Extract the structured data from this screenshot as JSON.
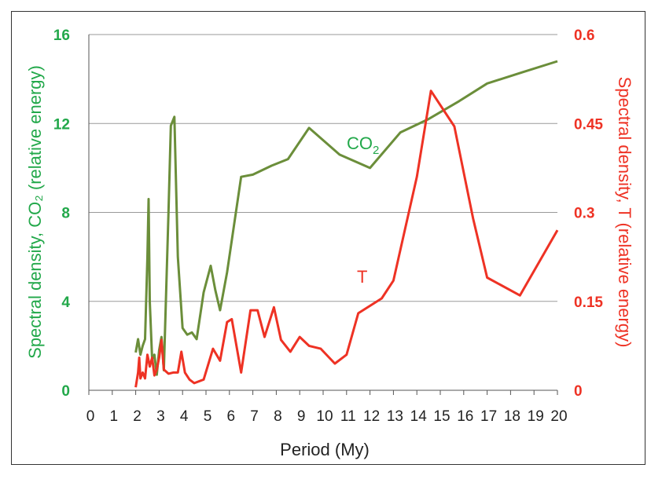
{
  "chart_data": {
    "type": "line",
    "xlabel": "Period (My)",
    "ylabel_left": "Spectral density, CO₂ (relative energy)",
    "ylabel_right": "Spectral density, T (relative energy)",
    "xlim": [
      0,
      20
    ],
    "xticks": [
      "0",
      "1",
      "2",
      "3",
      "4",
      "5",
      "6",
      "7",
      "8",
      "9",
      "10",
      "11",
      "12",
      "13",
      "14",
      "15",
      "16",
      "17",
      "18",
      "19",
      "20"
    ],
    "ylim_left": [
      0,
      16
    ],
    "yticks_left": [
      "0",
      "4",
      "8",
      "12",
      "16"
    ],
    "ylim_right": [
      0,
      0.6
    ],
    "yticks_right": [
      "0",
      "0.15",
      "0.3",
      "0.45",
      "0.6"
    ],
    "grid": "horizontal",
    "colors": {
      "co2": "#6b8e3a",
      "t": "#ee3224",
      "left_axis": "#22a84a",
      "right_axis": "#ee3224",
      "grid": "#9a9a9a"
    },
    "series": [
      {
        "name": "CO",
        "name_sub": "2",
        "axis": "left",
        "points": [
          [
            2.0,
            1.7
          ],
          [
            2.1,
            2.3
          ],
          [
            2.2,
            1.6
          ],
          [
            2.3,
            2.0
          ],
          [
            2.4,
            2.3
          ],
          [
            2.5,
            6.0
          ],
          [
            2.55,
            8.6
          ],
          [
            2.6,
            4.0
          ],
          [
            2.7,
            1.4
          ],
          [
            2.8,
            1.6
          ],
          [
            2.9,
            0.7
          ],
          [
            3.0,
            1.8
          ],
          [
            3.1,
            2.4
          ],
          [
            3.2,
            0.9
          ],
          [
            3.4,
            8.0
          ],
          [
            3.5,
            11.9
          ],
          [
            3.65,
            12.3
          ],
          [
            3.8,
            6.0
          ],
          [
            4.0,
            2.8
          ],
          [
            4.2,
            2.5
          ],
          [
            4.4,
            2.6
          ],
          [
            4.6,
            2.3
          ],
          [
            4.9,
            4.4
          ],
          [
            5.2,
            5.6
          ],
          [
            5.4,
            4.5
          ],
          [
            5.6,
            3.6
          ],
          [
            5.9,
            5.3
          ],
          [
            6.5,
            9.6
          ],
          [
            7.0,
            9.7
          ],
          [
            7.8,
            10.1
          ],
          [
            8.5,
            10.4
          ],
          [
            9.4,
            11.8
          ],
          [
            10.7,
            10.6
          ],
          [
            12.0,
            10.0
          ],
          [
            13.3,
            11.6
          ],
          [
            14.5,
            12.2
          ],
          [
            15.8,
            13.0
          ],
          [
            17.0,
            13.8
          ],
          [
            18.5,
            14.3
          ],
          [
            20.0,
            14.8
          ]
        ]
      },
      {
        "name": "T",
        "axis": "right",
        "points": [
          [
            2.0,
            0.005
          ],
          [
            2.1,
            0.03
          ],
          [
            2.15,
            0.055
          ],
          [
            2.2,
            0.02
          ],
          [
            2.3,
            0.03
          ],
          [
            2.4,
            0.02
          ],
          [
            2.5,
            0.06
          ],
          [
            2.6,
            0.04
          ],
          [
            2.7,
            0.055
          ],
          [
            2.8,
            0.025
          ],
          [
            2.9,
            0.035
          ],
          [
            3.0,
            0.055
          ],
          [
            3.1,
            0.085
          ],
          [
            3.2,
            0.035
          ],
          [
            3.4,
            0.028
          ],
          [
            3.6,
            0.03
          ],
          [
            3.8,
            0.03
          ],
          [
            3.95,
            0.065
          ],
          [
            4.1,
            0.03
          ],
          [
            4.3,
            0.018
          ],
          [
            4.5,
            0.012
          ],
          [
            4.9,
            0.018
          ],
          [
            5.3,
            0.07
          ],
          [
            5.6,
            0.05
          ],
          [
            5.9,
            0.115
          ],
          [
            6.1,
            0.12
          ],
          [
            6.5,
            0.03
          ],
          [
            6.9,
            0.135
          ],
          [
            7.2,
            0.135
          ],
          [
            7.5,
            0.09
          ],
          [
            7.9,
            0.14
          ],
          [
            8.2,
            0.085
          ],
          [
            8.6,
            0.065
          ],
          [
            9.0,
            0.09
          ],
          [
            9.4,
            0.075
          ],
          [
            9.9,
            0.07
          ],
          [
            10.5,
            0.045
          ],
          [
            11.0,
            0.06
          ],
          [
            11.5,
            0.13
          ],
          [
            12.5,
            0.155
          ],
          [
            13.0,
            0.185
          ],
          [
            14.0,
            0.36
          ],
          [
            14.6,
            0.505
          ],
          [
            15.6,
            0.445
          ],
          [
            16.4,
            0.29
          ],
          [
            17.0,
            0.19
          ],
          [
            18.4,
            0.16
          ],
          [
            20.0,
            0.27
          ]
        ]
      }
    ]
  }
}
